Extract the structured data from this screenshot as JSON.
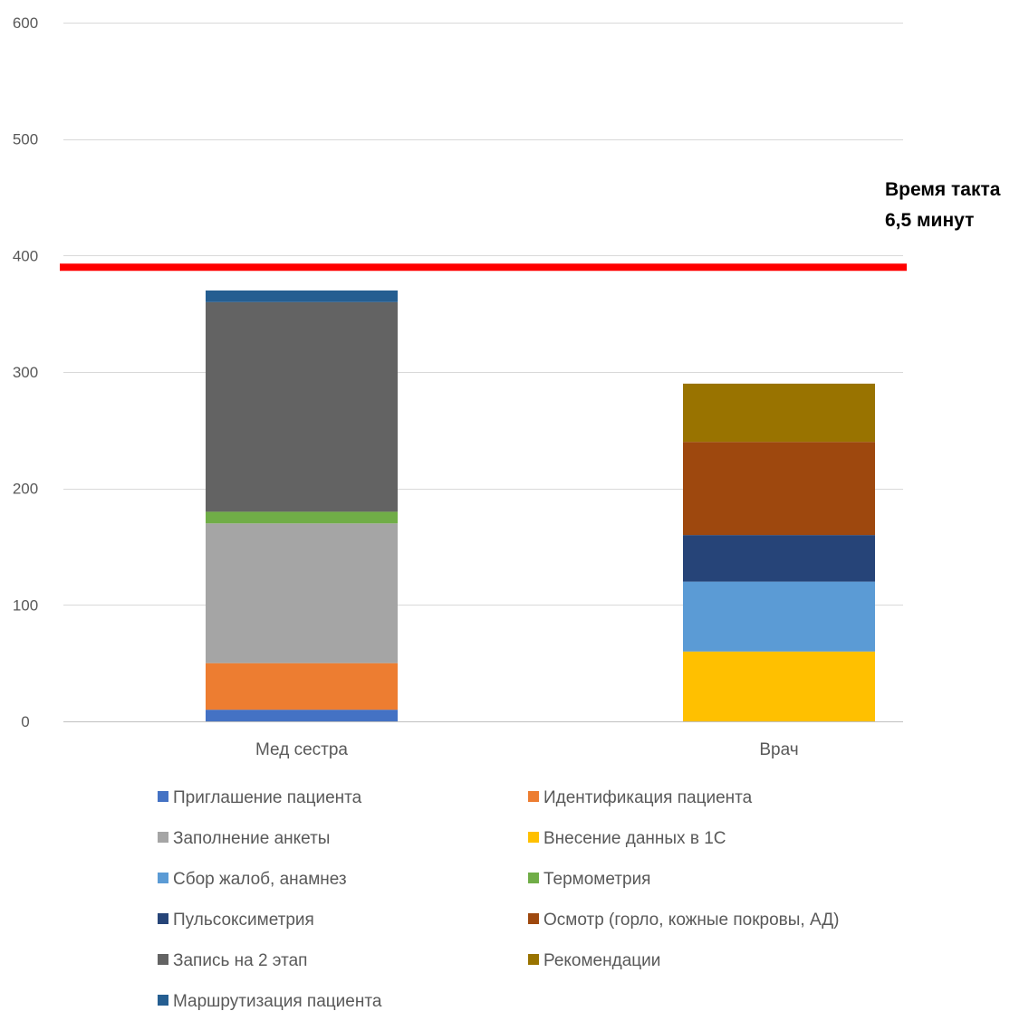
{
  "chart_data": {
    "type": "bar",
    "stacked": true,
    "categories": [
      "Мед сестра",
      "Врач"
    ],
    "ylim": [
      0,
      600
    ],
    "yticks": [
      0,
      100,
      200,
      300,
      400,
      500,
      600
    ],
    "grid": true,
    "legend_position": "bottom",
    "series": [
      {
        "name": "Приглашение пациента",
        "color": "#4472C4",
        "values": [
          10,
          0
        ]
      },
      {
        "name": "Идентификация пациента",
        "color": "#ED7D31",
        "values": [
          40,
          0
        ]
      },
      {
        "name": "Заполнение анкеты",
        "color": "#A5A5A5",
        "values": [
          120,
          0
        ]
      },
      {
        "name": "Внесение данных в 1С",
        "color": "#FFC000",
        "values": [
          0,
          60
        ]
      },
      {
        "name": "Сбор жалоб, анамнез",
        "color": "#5B9BD5",
        "values": [
          0,
          60
        ]
      },
      {
        "name": "Термометрия",
        "color": "#70AD47",
        "values": [
          10,
          0
        ]
      },
      {
        "name": "Пульсоксиметрия",
        "color": "#264478",
        "values": [
          0,
          40
        ]
      },
      {
        "name": "Осмотр (горло, кожные покровы, АД)",
        "color": "#9E480E",
        "values": [
          0,
          80
        ]
      },
      {
        "name": "Запись на 2 этап",
        "color": "#636363",
        "values": [
          180,
          0
        ]
      },
      {
        "name": "Рекомендации",
        "color": "#997300",
        "values": [
          0,
          50
        ]
      },
      {
        "name": "Маршрутизация пациента",
        "color": "#255E91",
        "values": [
          10,
          0
        ]
      }
    ],
    "reference_line": {
      "value": 390,
      "color": "#FF0000",
      "label_line1": "Время такта",
      "label_line2": "6,5 минут"
    }
  }
}
